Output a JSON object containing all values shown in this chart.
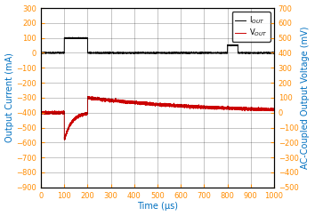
{
  "xlabel": "Time (μs)",
  "ylabel_left": "Output Current (mA)",
  "ylabel_right": "AC-Coupled Output Voltage (mV)",
  "xlim": [
    0,
    1000
  ],
  "ylim_left": [
    -900,
    300
  ],
  "ylim_right": [
    -500,
    700
  ],
  "yticks_left": [
    -900,
    -800,
    -700,
    -600,
    -500,
    -400,
    -300,
    -200,
    -100,
    0,
    100,
    200,
    300
  ],
  "yticks_right": [
    -500,
    -400,
    -300,
    -200,
    -100,
    0,
    100,
    200,
    300,
    400,
    500,
    600,
    700
  ],
  "xticks": [
    0,
    100,
    200,
    300,
    400,
    500,
    600,
    700,
    800,
    900,
    1000
  ],
  "iout_color": "#000000",
  "vout_color": "#cc0000",
  "legend_iout": "I$_{OUT}$",
  "legend_vout": "V$_{OUT}$",
  "bg_color": "#ffffff",
  "grid_color": "#000000",
  "label_color": "#0070C0",
  "tick_color": "#FF8C00",
  "spine_color": "#000000",
  "figsize": [
    3.54,
    2.43
  ],
  "dpi": 100
}
